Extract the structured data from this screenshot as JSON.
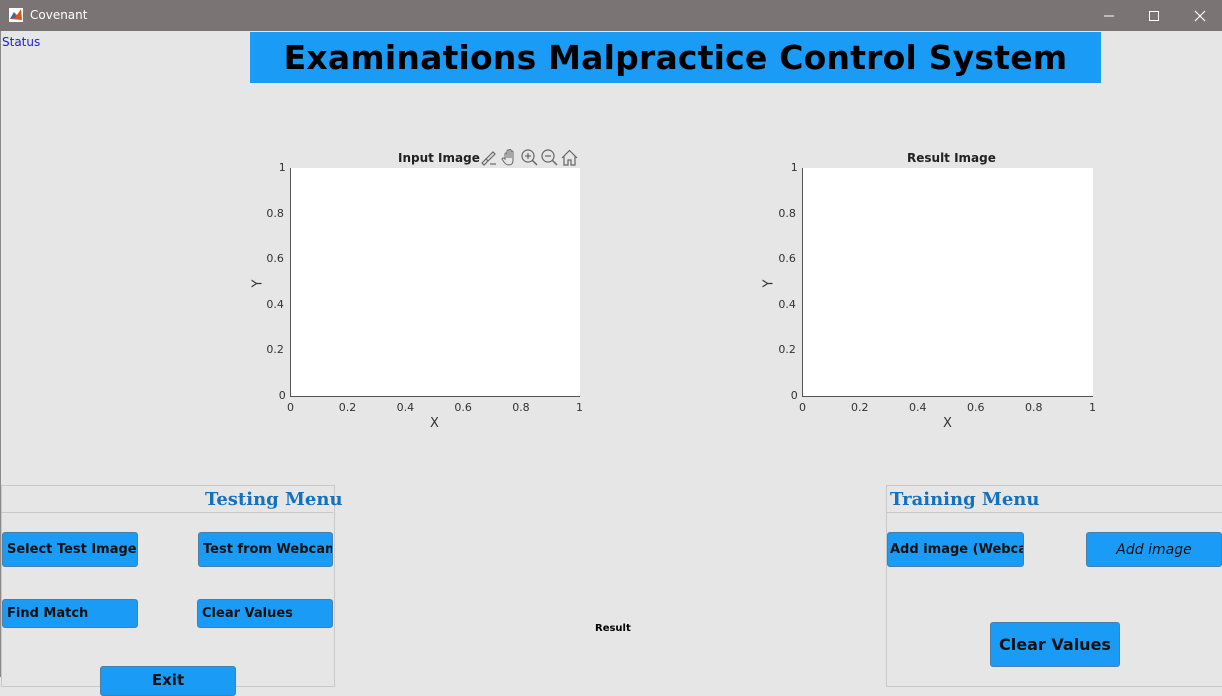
{
  "window": {
    "title": "Covenant",
    "minimize_icon": "minimize-icon",
    "maximize_icon": "maximize-icon",
    "close_icon": "close-icon"
  },
  "status_text": "Status",
  "banner_title": "Examinations Malpractice Control System",
  "axes": [
    {
      "title": "Input Image",
      "xlabel": "X",
      "ylabel": "Y",
      "xticks": [
        "0",
        "0.2",
        "0.4",
        "0.6",
        "0.8",
        "1"
      ],
      "yticks": [
        "1",
        "0.8",
        "0.6",
        "0.4",
        "0.2",
        "0"
      ],
      "toolbar": [
        "brush-icon",
        "pan-hand-icon",
        "zoom-in-icon",
        "zoom-out-icon",
        "home-icon"
      ]
    },
    {
      "title": "Result Image",
      "xlabel": "X",
      "ylabel": "Y",
      "xticks": [
        "0",
        "0.2",
        "0.4",
        "0.6",
        "0.8",
        "1"
      ],
      "yticks": [
        "1",
        "0.8",
        "0.6",
        "0.4",
        "0.2",
        "0"
      ]
    }
  ],
  "testing_menu": {
    "title": "Testing Menu",
    "buttons": [
      "Select Test Image",
      "Test from Webcam",
      "Find Match",
      "Clear Values",
      "Exit"
    ]
  },
  "training_menu": {
    "title": "Training Menu",
    "buttons": [
      "Add image (Webcam",
      "Add image",
      "Clear Values"
    ]
  },
  "result_label": "Result",
  "colors": {
    "banner": "#1a9bf5",
    "button": "#1a9bf5",
    "panel_title": "#1570bd",
    "titlebar": "#7a7574"
  }
}
